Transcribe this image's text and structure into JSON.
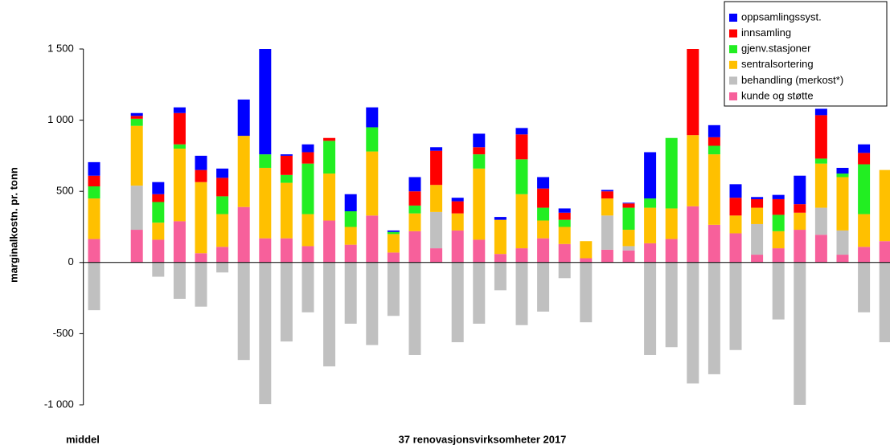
{
  "chart_data": {
    "type": "stacked_bar",
    "y_label": "marginalkostn. pr. tonn",
    "x_label": "37 renovasjonsvirksomheter 2017",
    "annotation": "middel",
    "categories": [
      null,
      null,
      null,
      null,
      null,
      null,
      null,
      null,
      null,
      null,
      null,
      null,
      null,
      null,
      null,
      null,
      null,
      null,
      null,
      null,
      null,
      null,
      null,
      null,
      null,
      null,
      null,
      null,
      null,
      null,
      null,
      null,
      null,
      null,
      null,
      null,
      null,
      null
    ],
    "series": [
      {
        "name": "kunde og støtte",
        "color": "#f7609b",
        "values": [
          165,
          null,
          230,
          160,
          290,
          65,
          110,
          390,
          170,
          170,
          115,
          295,
          125,
          330,
          70,
          220,
          100,
          225,
          160,
          60,
          100,
          170,
          130,
          30,
          90,
          85,
          135,
          165,
          395,
          265,
          205,
          55,
          100,
          230,
          195,
          55,
          110,
          150
        ]
      },
      {
        "name": "behandling (merkost*)",
        "color": "#c0c0c0",
        "values": [
          -335,
          null,
          310,
          -100,
          -255,
          -310,
          -70,
          -685,
          -995,
          -555,
          -350,
          -730,
          -430,
          -580,
          -375,
          -650,
          255,
          -560,
          -430,
          -195,
          -440,
          -345,
          -110,
          -420,
          240,
          30,
          -650,
          -595,
          -850,
          -785,
          -615,
          215,
          -400,
          -1000,
          190,
          170,
          -350,
          -560
        ]
      },
      {
        "name": "sentralsortering",
        "color": "#ffc000",
        "values": [
          285,
          null,
          420,
          120,
          510,
          500,
          230,
          500,
          495,
          390,
          225,
          330,
          125,
          450,
          130,
          125,
          190,
          120,
          500,
          240,
          380,
          125,
          120,
          120,
          120,
          115,
          250,
          215,
          500,
          495,
          125,
          115,
          120,
          120,
          310,
          375,
          230,
          500
        ]
      },
      {
        "name": "gjenv.stasjoner",
        "color": "#22ee22",
        "values": [
          85,
          null,
          50,
          145,
          30,
          0,
          125,
          0,
          95,
          55,
          355,
          230,
          110,
          170,
          15,
          55,
          0,
          0,
          100,
          0,
          245,
          90,
          50,
          0,
          0,
          155,
          65,
          495,
          0,
          60,
          0,
          0,
          115,
          0,
          35,
          25,
          350,
          0
        ]
      },
      {
        "name": "innsamling",
        "color": "#ff0000",
        "values": [
          75,
          null,
          20,
          55,
          220,
          85,
          130,
          0,
          0,
          135,
          80,
          20,
          0,
          0,
          0,
          100,
          240,
          85,
          50,
          0,
          175,
          135,
          50,
          0,
          50,
          30,
          0,
          0,
          605,
          60,
          125,
          60,
          110,
          60,
          305,
          0,
          80,
          0
        ]
      },
      {
        "name": "oppsamlingssyst.",
        "color": "#0000ff",
        "values": [
          95,
          null,
          20,
          85,
          40,
          100,
          65,
          255,
          740,
          10,
          55,
          0,
          120,
          140,
          10,
          100,
          25,
          25,
          95,
          20,
          45,
          80,
          30,
          0,
          10,
          5,
          325,
          0,
          0,
          85,
          95,
          15,
          30,
          200,
          45,
          40,
          60,
          0
        ]
      }
    ],
    "ylim": [
      -1000,
      1500
    ],
    "yticks": [
      {
        "value": -1000,
        "label": "-1 000"
      },
      -500,
      0,
      500,
      {
        "value": 1000,
        "label": "1 000"
      },
      {
        "value": 1500,
        "label": "1 500"
      }
    ],
    "legend": "upper right"
  }
}
